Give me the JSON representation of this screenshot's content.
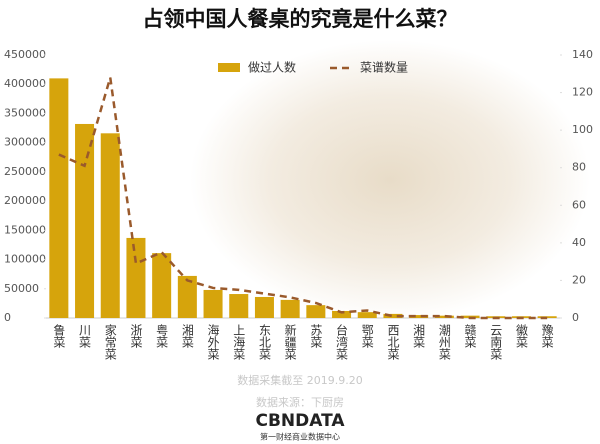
{
  "chart_data": {
    "type": "bar_line",
    "title": "占领中国人餐桌的究竟是什么菜？",
    "categories": [
      "鲁菜",
      "川菜",
      "家常菜",
      "浙菜",
      "粤菜",
      "湘菜",
      "海外菜",
      "上海菜",
      "东北菜",
      "新疆菜",
      "苏菜",
      "台湾菜",
      "鄂菜",
      "西北菜",
      "湘菜",
      "潮州菜",
      "赣菜",
      "云南菜",
      "徽菜",
      "豫菜"
    ],
    "series": [
      {
        "name": "做过人数",
        "type": "bar",
        "color": "#d6a40c",
        "values": [
          410000,
          332000,
          316000,
          137000,
          111000,
          72000,
          48000,
          41000,
          36000,
          31000,
          22000,
          12000,
          10000,
          7000,
          5000,
          4000,
          4000,
          3000,
          3000,
          3000
        ]
      },
      {
        "name": "菜谱数量",
        "type": "line",
        "axis": "y2",
        "color": "#9a5a2c",
        "dashed": true,
        "values": [
          87,
          81,
          128,
          29,
          35,
          20,
          16,
          15,
          13,
          11,
          8,
          3,
          4,
          1,
          1,
          1,
          0,
          0,
          0,
          0
        ]
      }
    ],
    "ylim": [
      0,
      450000
    ],
    "yticks": [
      0,
      50000,
      100000,
      150000,
      200000,
      250000,
      300000,
      350000,
      400000,
      450000
    ],
    "y2lim": [
      0,
      140
    ],
    "y2ticks": [
      0,
      20,
      40,
      60,
      80,
      100,
      120,
      140
    ],
    "legend": "top",
    "notes": [
      "数据采集截至 2019.9.20",
      "数据来源：下厨房"
    ],
    "brand": "CBNDATA",
    "brand_subtitle": "第一财经商业数据中心"
  }
}
